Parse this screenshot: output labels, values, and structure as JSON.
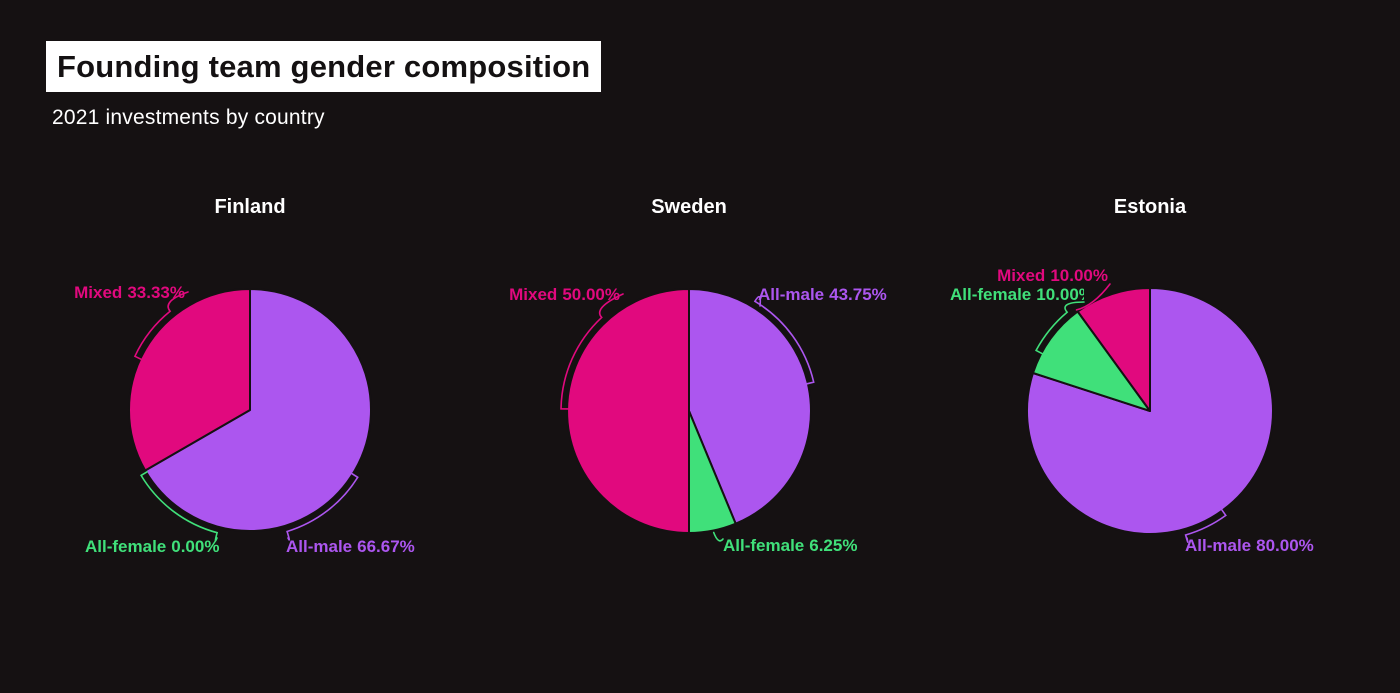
{
  "header": {
    "title": "Founding team gender composition",
    "subtitle": "2021 investments by country"
  },
  "colors": {
    "background": "#151112",
    "title_bar_bg": "#FFFFFF",
    "title_text": "#141112",
    "subtitle_text": "#FFFFFF",
    "chart_title_text": "#FFFFFF",
    "mixed": "#E1097E",
    "all_male": "#AC56EF",
    "all_female": "#40E07A"
  },
  "chart_data": [
    {
      "type": "pie",
      "title": "Finland",
      "order": "clockwise from 12 o'clock",
      "slices": [
        {
          "name": "All-male",
          "value": 66.67,
          "pct_label": "66.67%",
          "color_key": "all_male"
        },
        {
          "name": "All-female",
          "value": 0.0,
          "pct_label": "0.00%",
          "color_key": "all_female"
        },
        {
          "name": "Mixed",
          "value": 33.33,
          "pct_label": "33.33%",
          "color_key": "mixed"
        }
      ]
    },
    {
      "type": "pie",
      "title": "Sweden",
      "order": "clockwise from 12 o'clock",
      "slices": [
        {
          "name": "All-male",
          "value": 43.75,
          "pct_label": "43.75%",
          "color_key": "all_male"
        },
        {
          "name": "All-female",
          "value": 6.25,
          "pct_label": "6.25%",
          "color_key": "all_female"
        },
        {
          "name": "Mixed",
          "value": 50.0,
          "pct_label": "50.00%",
          "color_key": "mixed"
        }
      ]
    },
    {
      "type": "pie",
      "title": "Estonia",
      "order": "clockwise from 12 o'clock",
      "slices": [
        {
          "name": "All-male",
          "value": 80.0,
          "pct_label": "80.00%",
          "color_key": "all_male"
        },
        {
          "name": "All-female",
          "value": 10.0,
          "pct_label": "10.00%",
          "color_key": "all_female"
        },
        {
          "name": "Mixed",
          "value": 10.0,
          "pct_label": "10.00%",
          "color_key": "mixed"
        }
      ]
    }
  ]
}
